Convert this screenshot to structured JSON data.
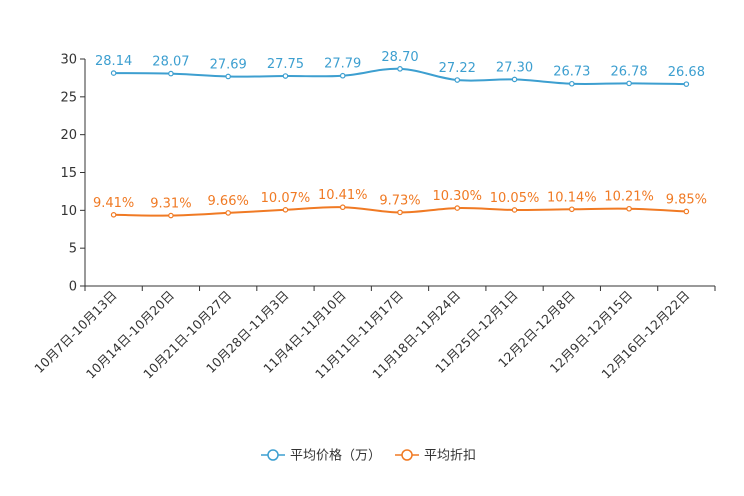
{
  "chart_data": {
    "type": "line",
    "title": "",
    "xlabel": "",
    "ylabel": "",
    "ylim": [
      0,
      30
    ],
    "yticks": [
      0,
      5,
      10,
      15,
      20,
      25,
      30
    ],
    "grid": false,
    "legend_position": "bottom-center",
    "categories": [
      "10月7日-10月13日",
      "10月14日-10月20日",
      "10月21日-10月27日",
      "10月28日-11月3日",
      "11月4日-11月10日",
      "11月11日-11月17日",
      "11月18日-11月24日",
      "11月25日-12月1日",
      "12月2日-12月8日",
      "12月9日-12月15日",
      "12月16日-12月22日"
    ],
    "series": [
      {
        "name": "平均价格（万）",
        "color": "#3d9fd0",
        "values": [
          28.14,
          28.07,
          27.69,
          27.75,
          27.79,
          28.7,
          27.22,
          27.3,
          26.73,
          26.78,
          26.68
        ],
        "labels": [
          "28.14",
          "28.07",
          "27.69",
          "27.75",
          "27.79",
          "28.70",
          "27.22",
          "27.30",
          "26.73",
          "26.78",
          "26.68"
        ]
      },
      {
        "name": "平均折扣",
        "color": "#f07a24",
        "values": [
          9.41,
          9.31,
          9.66,
          10.07,
          10.41,
          9.73,
          10.3,
          10.05,
          10.14,
          10.21,
          9.85
        ],
        "labels": [
          "9.41%",
          "9.31%",
          "9.66%",
          "10.07%",
          "10.41%",
          "9.73%",
          "10.30%",
          "10.05%",
          "10.14%",
          "10.21%",
          "9.85%"
        ]
      }
    ]
  }
}
